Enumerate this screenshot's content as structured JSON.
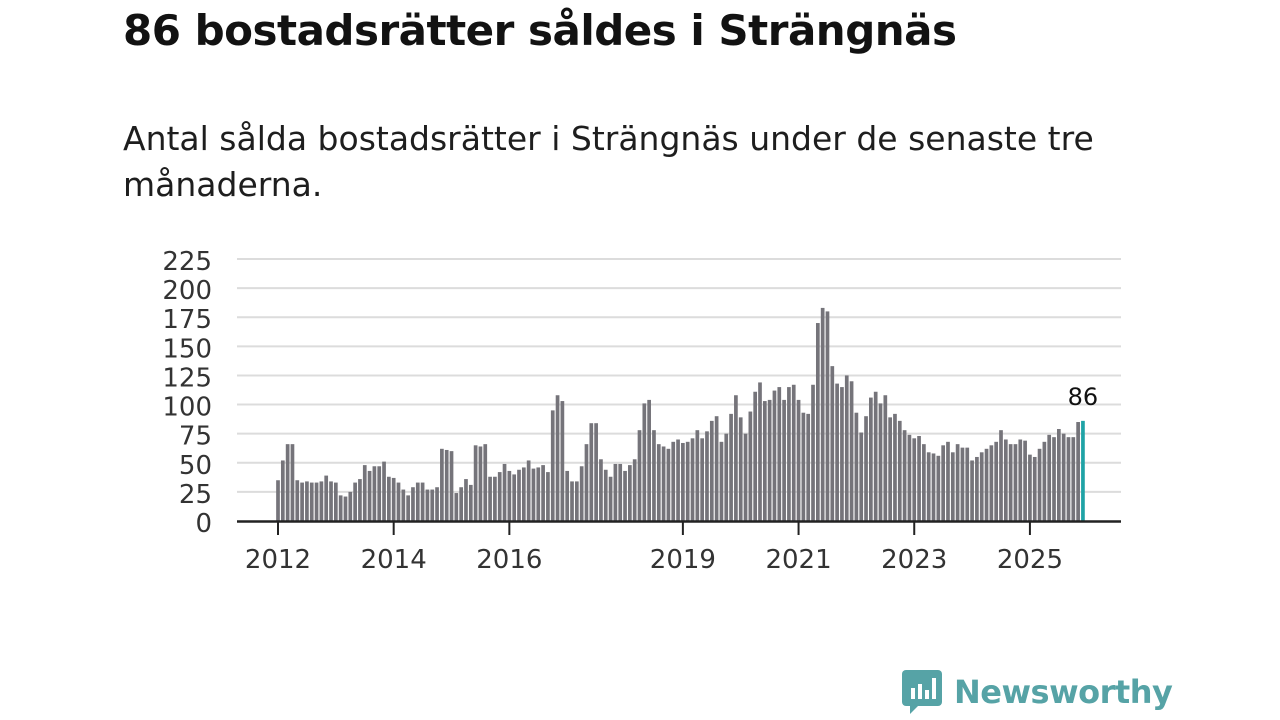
{
  "title": "86 bostadsrätter såldes i Strängnäs",
  "subtitle": "Antal sålda bostadsrätter i Strängnäs under de senaste tre månaderna.",
  "brand": {
    "name": "Newsworthy",
    "color": "#56a3a6"
  },
  "colors": {
    "bar": "#75747a",
    "highlight": "#1fa3a6",
    "grid": "#dcdcdc",
    "axis": "#222222",
    "text": "#333333"
  },
  "chart_data": {
    "type": "bar",
    "title": "86 bostadsrätter såldes i Strängnäs",
    "xlabel": "",
    "ylabel": "",
    "ylim": [
      0,
      225
    ],
    "yticks": [
      0,
      25,
      50,
      75,
      100,
      125,
      150,
      175,
      200,
      225
    ],
    "grid": true,
    "start": "2012-01",
    "xtick_labels": [
      {
        "label": "2012",
        "index": 0
      },
      {
        "label": "2014",
        "index": 24
      },
      {
        "label": "2016",
        "index": 48
      },
      {
        "label": "2019",
        "index": 84
      },
      {
        "label": "2021",
        "index": 108
      },
      {
        "label": "2023",
        "index": 132
      },
      {
        "label": "2025",
        "index": 156
      }
    ],
    "values": [
      35,
      52,
      66,
      66,
      35,
      33,
      34,
      33,
      33,
      34,
      39,
      34,
      33,
      22,
      21,
      25,
      33,
      36,
      48,
      43,
      47,
      47,
      51,
      38,
      37,
      33,
      27,
      22,
      29,
      33,
      33,
      27,
      27,
      29,
      62,
      61,
      60,
      24,
      29,
      36,
      31,
      65,
      64,
      66,
      38,
      38,
      42,
      49,
      43,
      40,
      44,
      46,
      52,
      45,
      46,
      48,
      42,
      95,
      108,
      103,
      43,
      34,
      34,
      47,
      66,
      84,
      84,
      53,
      44,
      38,
      49,
      49,
      43,
      48,
      53,
      78,
      101,
      104,
      78,
      66,
      64,
      62,
      68,
      70,
      67,
      68,
      71,
      78,
      71,
      77,
      86,
      90,
      68,
      75,
      92,
      108,
      89,
      75,
      94,
      111,
      119,
      103,
      104,
      112,
      115,
      104,
      115,
      117,
      104,
      93,
      92,
      117,
      170,
      183,
      180,
      133,
      118,
      115,
      125,
      120,
      93,
      76,
      90,
      106,
      111,
      101,
      108,
      89,
      92,
      86,
      78,
      74,
      71,
      73,
      66,
      59,
      58,
      56,
      65,
      68,
      59,
      66,
      63,
      63,
      52,
      55,
      59,
      62,
      65,
      68,
      78,
      70,
      66,
      66,
      70,
      69,
      57,
      55,
      62,
      68,
      74,
      72,
      79,
      75,
      72,
      72,
      85,
      86
    ],
    "highlight": {
      "index": 167,
      "value": 86,
      "label": "86"
    }
  }
}
